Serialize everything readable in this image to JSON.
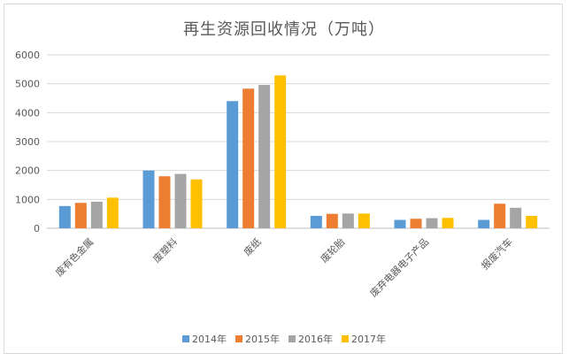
{
  "chart_data": {
    "type": "bar",
    "title": "再生资源回收情况（万吨）",
    "categories": [
      "废有色金属",
      "废塑料",
      "废纸",
      "废轮胎",
      "废弃电器电子产品",
      "报废汽车"
    ],
    "series": [
      {
        "name": "2014年",
        "color": "#5B9BD5",
        "values": [
          770,
          2000,
          4400,
          430,
          290,
          290
        ]
      },
      {
        "name": "2015年",
        "color": "#ED7D31",
        "values": [
          880,
          1800,
          4830,
          500,
          330,
          850
        ]
      },
      {
        "name": "2016年",
        "color": "#A5A5A5",
        "values": [
          920,
          1880,
          4960,
          510,
          350,
          710
        ]
      },
      {
        "name": "2017年",
        "color": "#FFC000",
        "values": [
          1060,
          1690,
          5290,
          510,
          360,
          430
        ]
      }
    ],
    "yticks": [
      "0",
      "1000",
      "2000",
      "3000",
      "4000",
      "5000",
      "6000"
    ],
    "ylim": [
      0,
      6000
    ],
    "grid": true,
    "legend_position": "bottom"
  }
}
